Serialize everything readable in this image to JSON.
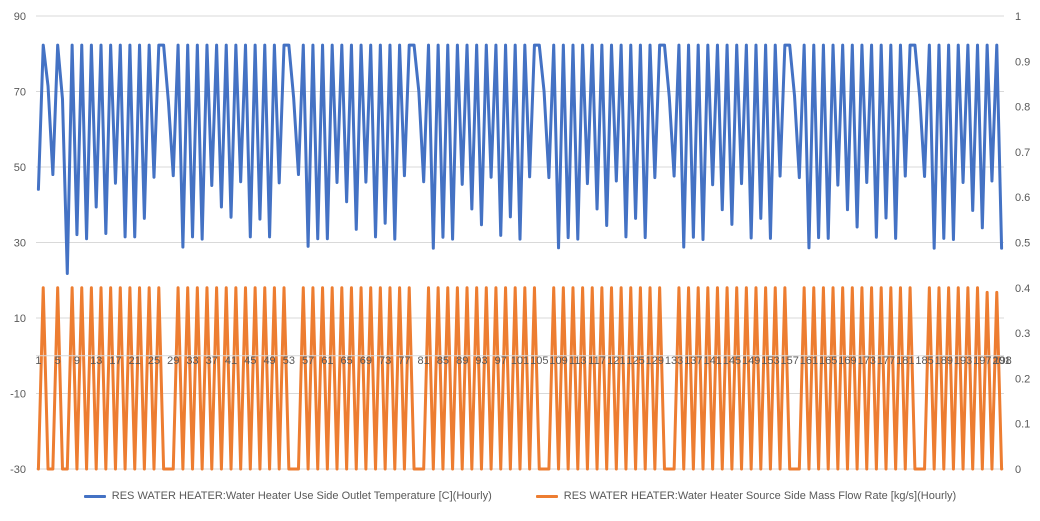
{
  "chart_data": {
    "type": "line",
    "title": "",
    "xlabel": "",
    "ylabel": "",
    "x_ticks_step": 4,
    "x_range": [
      1,
      198
    ],
    "ylim_left": [
      -30,
      90
    ],
    "ylim_right": [
      0,
      1
    ],
    "left_ticks": [
      "90",
      "70",
      "50",
      "30",
      "10",
      "-10",
      "-30"
    ],
    "right_ticks": [
      "1",
      "0.9",
      "0.8",
      "0.7",
      "0.6",
      "0.5",
      "0.4",
      "0.3",
      "0.2",
      "0.1",
      "0"
    ],
    "grid": "horizontal",
    "legend_position": "bottom",
    "series": [
      {
        "name": "RES WATER HEATER:Water Heater Use Side Outlet Temperature [C](Hourly)",
        "axis": "left",
        "color": "#4472C4",
        "values": [
          44.1,
          82.3,
          71.4,
          48,
          82.3,
          68,
          21.8,
          82.3,
          32.1,
          82.3,
          31,
          82.3,
          39.4,
          82.3,
          32.4,
          82.3,
          45.7,
          82.3,
          31.5,
          82.3,
          31.5,
          82.3,
          36.4,
          82.3,
          47.3,
          82.3,
          82.3,
          67.2,
          47.7,
          82.3,
          28.8,
          82.3,
          31.5,
          82.3,
          30.9,
          82.3,
          45.1,
          82.3,
          39.4,
          82.3,
          36.7,
          82.3,
          46.1,
          82.3,
          31.5,
          82.3,
          36.2,
          82.3,
          31.5,
          82.3,
          45.8,
          82.3,
          82.3,
          68.3,
          48,
          82.3,
          29,
          82.3,
          31,
          82.3,
          31,
          82.3,
          45.9,
          82.3,
          40.8,
          82.3,
          33.5,
          82.3,
          46,
          82.3,
          31.5,
          82.3,
          35.1,
          82.3,
          30.9,
          82.3,
          47.7,
          82.3,
          82.3,
          69.9,
          46.1,
          82.3,
          28.5,
          82.3,
          31.4,
          82.3,
          30.9,
          82.3,
          45.4,
          82.3,
          38.9,
          82.3,
          34.7,
          82.3,
          47.3,
          82.3,
          31.9,
          82.3,
          36.8,
          82.3,
          30.9,
          82.3,
          47.4,
          82.3,
          82.3,
          70,
          47.2,
          82.3,
          28.6,
          82.3,
          31.3,
          82.3,
          30.9,
          82.3,
          45.6,
          82.3,
          38.9,
          82.3,
          34.5,
          82.3,
          46.3,
          82.3,
          31.5,
          82.3,
          36.4,
          82.3,
          31.3,
          82.3,
          47.2,
          82.3,
          82.3,
          68.5,
          47.6,
          82.3,
          28.8,
          82.3,
          31.4,
          82.3,
          30.8,
          82.3,
          45.3,
          82.3,
          38.7,
          82.3,
          34.8,
          82.3,
          45.6,
          82.3,
          31.2,
          82.3,
          36.4,
          82.3,
          31.1,
          82.3,
          47.6,
          82.3,
          82.3,
          68.9,
          47.2,
          82.3,
          28.6,
          82.3,
          31.3,
          82.3,
          31.1,
          82.3,
          45.2,
          82.3,
          38.7,
          82.3,
          34.1,
          82.3,
          45.9,
          82.3,
          31.4,
          82.3,
          36.5,
          82.3,
          31.1,
          82.3,
          47.6,
          82.3,
          82.3,
          68.5,
          47.5,
          82.3,
          28.5,
          82.3,
          31.1,
          82.3,
          30.8,
          82.3,
          45.9,
          82.3,
          38.5,
          82.3,
          33.9,
          82.3,
          46.3,
          82.3,
          28.5
        ]
      },
      {
        "name": "RES WATER HEATER:Water Heater Source Side Mass Flow Rate [kg/s](Hourly)",
        "axis": "right",
        "color": "#ED7D31",
        "values": [
          0,
          0.4,
          0,
          0,
          0.4,
          0,
          0,
          0.4,
          0,
          0.4,
          0,
          0.4,
          0,
          0.4,
          0,
          0.4,
          0,
          0.4,
          0,
          0.4,
          0,
          0.4,
          0,
          0.4,
          0,
          0.4,
          0,
          0,
          0,
          0.4,
          0,
          0.4,
          0,
          0.4,
          0,
          0.4,
          0,
          0.4,
          0,
          0.4,
          0,
          0.4,
          0,
          0.4,
          0,
          0.4,
          0,
          0.4,
          0,
          0.4,
          0,
          0.4,
          0,
          0,
          0,
          0.4,
          0,
          0.4,
          0,
          0.4,
          0,
          0.4,
          0,
          0.4,
          0,
          0.4,
          0,
          0.4,
          0,
          0.4,
          0,
          0.4,
          0,
          0.4,
          0,
          0.4,
          0,
          0.4,
          0,
          0,
          0,
          0.4,
          0,
          0.4,
          0,
          0.4,
          0,
          0.4,
          0,
          0.4,
          0,
          0.4,
          0,
          0.4,
          0,
          0.4,
          0,
          0.4,
          0,
          0.4,
          0,
          0.4,
          0,
          0.4,
          0,
          0,
          0,
          0.4,
          0,
          0.4,
          0,
          0.4,
          0,
          0.4,
          0,
          0.4,
          0,
          0.4,
          0,
          0.4,
          0,
          0.4,
          0,
          0.4,
          0,
          0.4,
          0,
          0.4,
          0,
          0.4,
          0,
          0,
          0,
          0.4,
          0,
          0.4,
          0,
          0.4,
          0,
          0.4,
          0,
          0.4,
          0,
          0.4,
          0,
          0.4,
          0,
          0.4,
          0,
          0.4,
          0,
          0.4,
          0,
          0.4,
          0,
          0.4,
          0,
          0,
          0,
          0.4,
          0,
          0.4,
          0,
          0.4,
          0,
          0.4,
          0,
          0.4,
          0,
          0.4,
          0,
          0.4,
          0,
          0.4,
          0,
          0.4,
          0,
          0.4,
          0,
          0.4,
          0,
          0.4,
          0,
          0,
          0,
          0.4,
          0,
          0.4,
          0,
          0.4,
          0,
          0.4,
          0,
          0.4,
          0,
          0.4,
          0,
          0.39,
          0,
          0.39,
          0
        ]
      }
    ]
  }
}
